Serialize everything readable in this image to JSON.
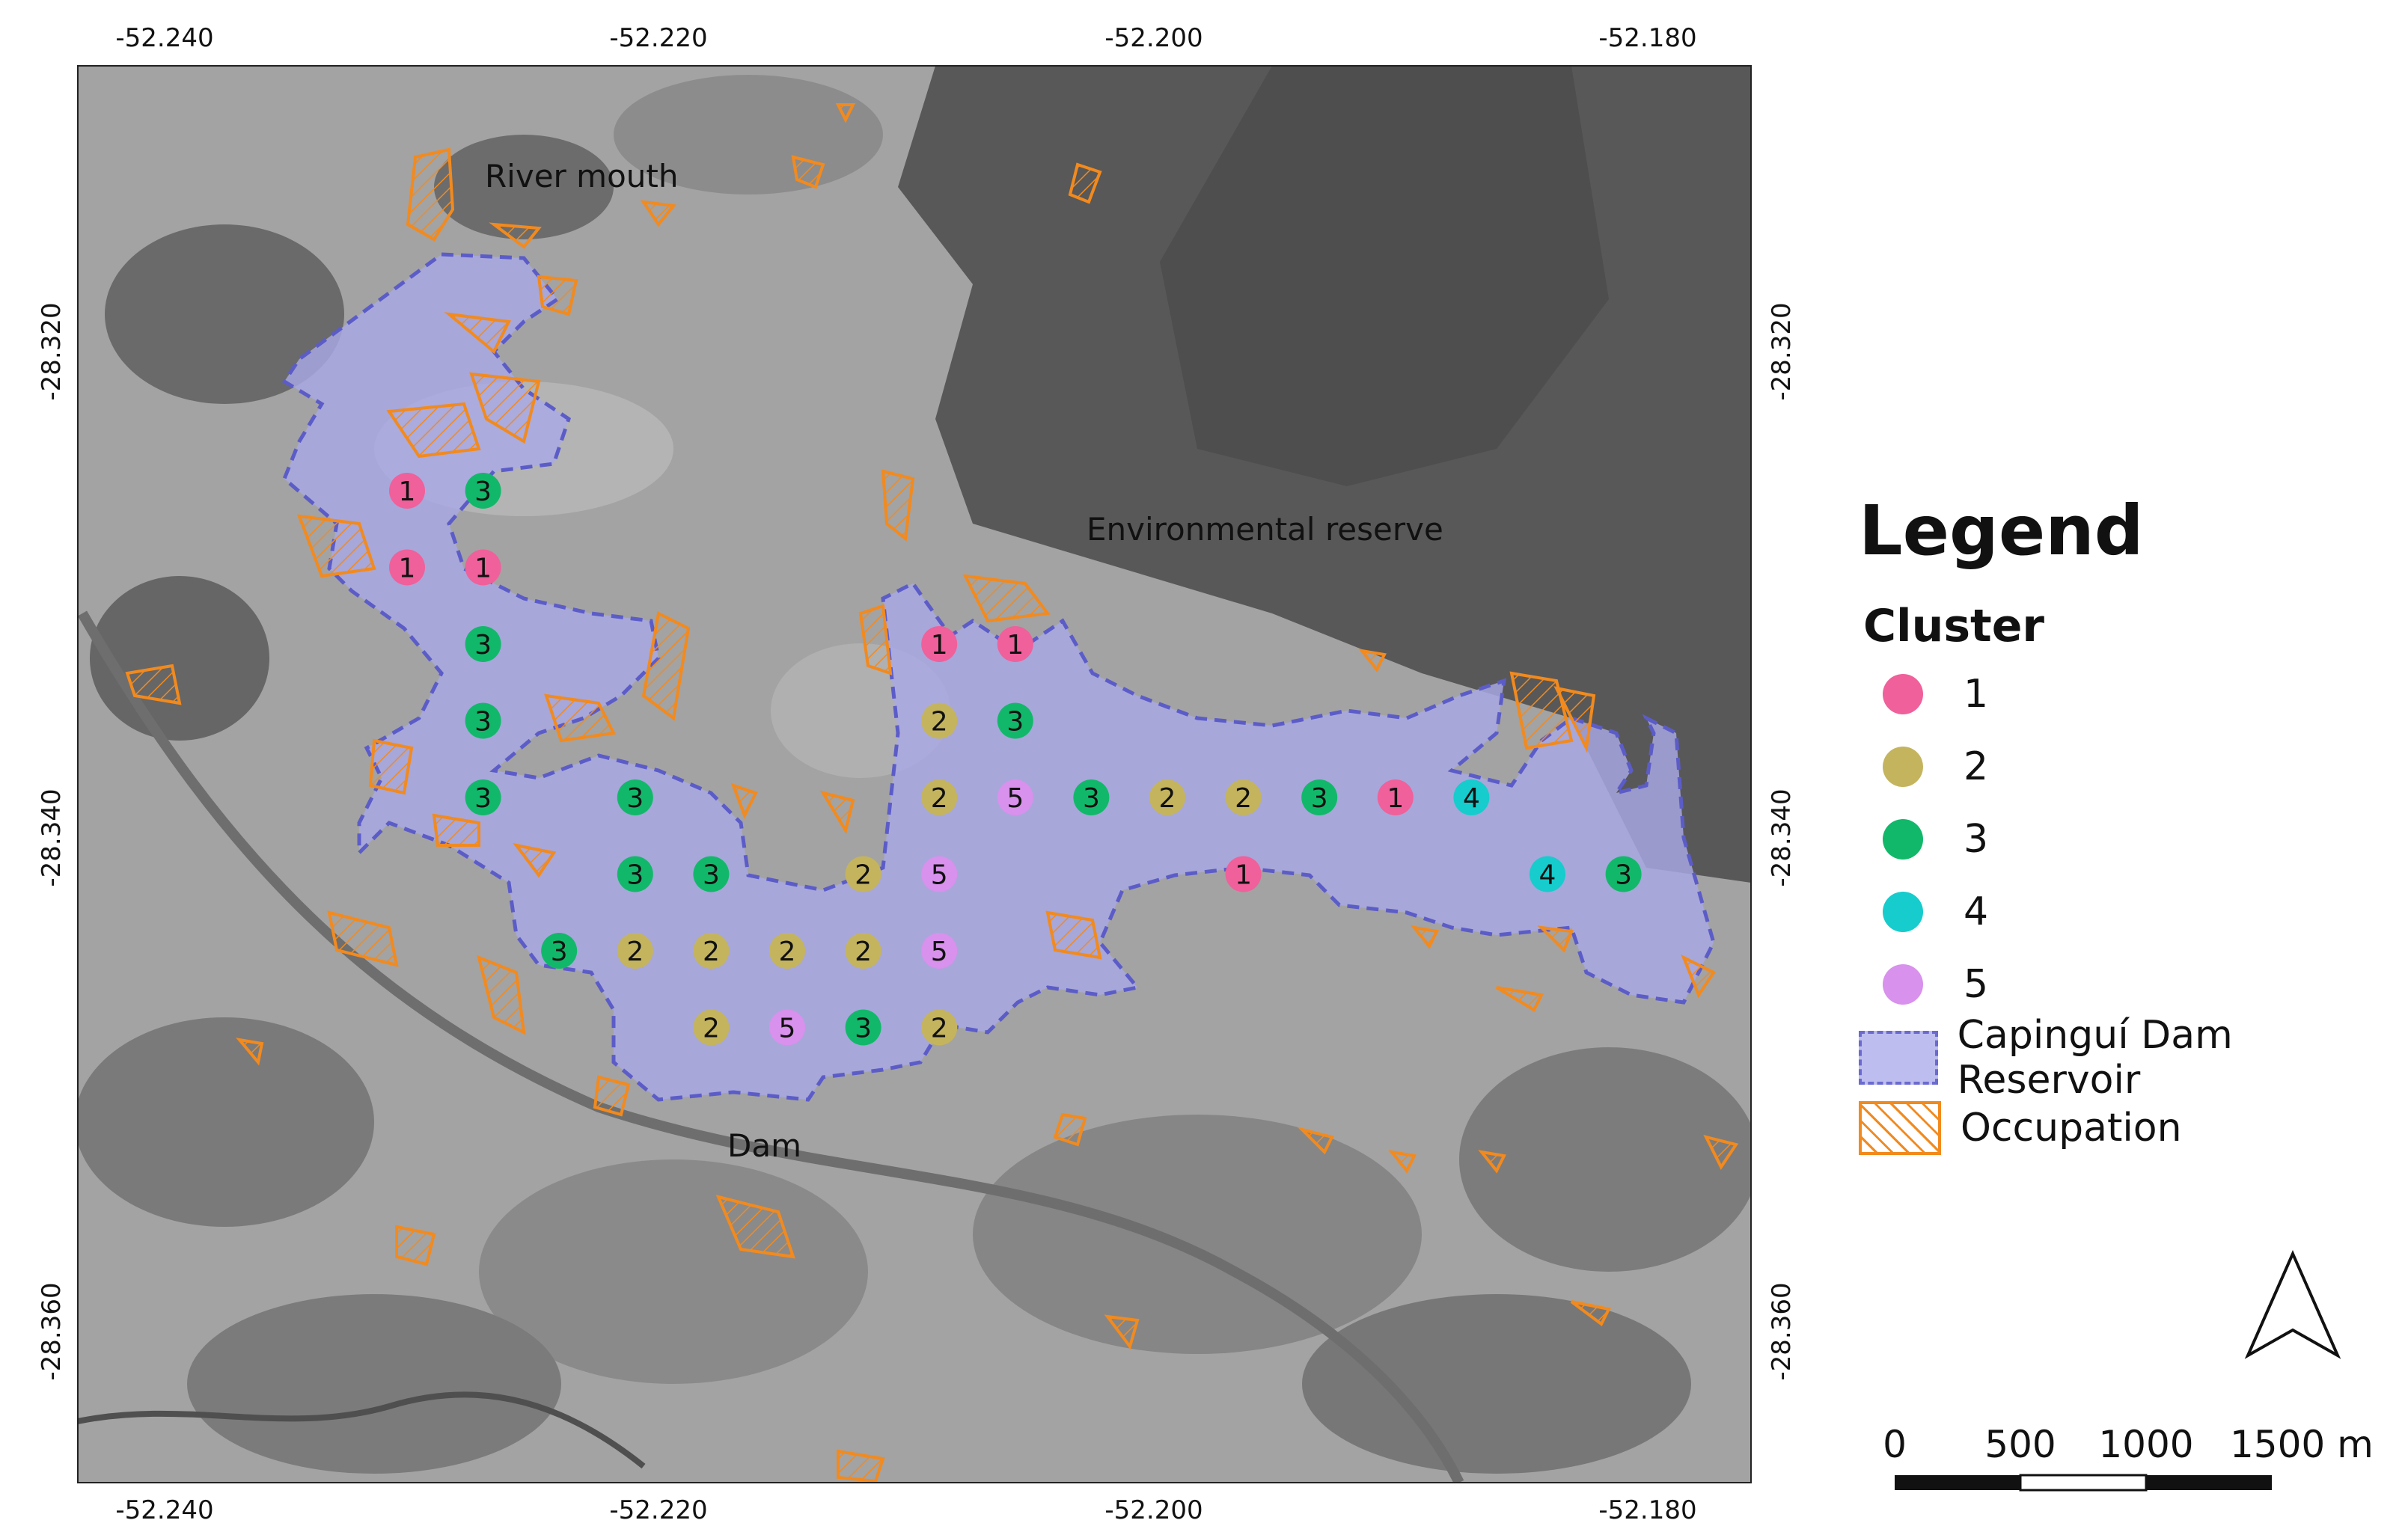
{
  "axes": {
    "top_ticks": [
      "-52.240",
      "-52.220",
      "-52.200",
      "-52.180"
    ],
    "bottom_ticks": [
      "-52.240",
      "-52.220",
      "-52.200",
      "-52.180"
    ],
    "left_ticks": [
      "-28.320",
      "-28.340",
      "-28.360"
    ],
    "right_ticks": [
      "-28.320",
      "-28.340",
      "-28.360"
    ]
  },
  "places": {
    "river_mouth": "River mouth",
    "environmental_reserve": "Environmental reserve",
    "dam": "Dam"
  },
  "legend": {
    "title": "Legend",
    "cluster_heading": "Cluster",
    "clusters": [
      {
        "label": "1",
        "color": "#f0609a"
      },
      {
        "label": "2",
        "color": "#c4b45e"
      },
      {
        "label": "3",
        "color": "#12b86a"
      },
      {
        "label": "4",
        "color": "#16cccc"
      },
      {
        "label": "5",
        "color": "#d891ec"
      }
    ],
    "reservoir_label": "Capinguí Dam Reservoir",
    "occupation_label": "Occupation"
  },
  "colors": {
    "reservoir_fill": "#a8a8e6",
    "reservoir_border": "#5c5cc8",
    "occupation": "#f28a1e",
    "background_imagery": "#9a9a9a",
    "forest": "#5a5a5a"
  },
  "scale_bar": {
    "labels": [
      "0",
      "500",
      "1000",
      "1500 m"
    ]
  },
  "north_arrow": "north-arrow-icon",
  "sample_points": [
    {
      "row": 0,
      "col": 0,
      "cluster": 1
    },
    {
      "row": 0,
      "col": 1,
      "cluster": 3
    },
    {
      "row": 1,
      "col": 0,
      "cluster": 1
    },
    {
      "row": 1,
      "col": 1,
      "cluster": 1
    },
    {
      "row": 2,
      "col": 1,
      "cluster": 3
    },
    {
      "row": 2,
      "col": 7,
      "cluster": 1
    },
    {
      "row": 2,
      "col": 8,
      "cluster": 1
    },
    {
      "row": 3,
      "col": 1,
      "cluster": 3
    },
    {
      "row": 3,
      "col": 7,
      "cluster": 2
    },
    {
      "row": 3,
      "col": 8,
      "cluster": 3
    },
    {
      "row": 4,
      "col": 1,
      "cluster": 3
    },
    {
      "row": 4,
      "col": 3,
      "cluster": 3
    },
    {
      "row": 4,
      "col": 7,
      "cluster": 2
    },
    {
      "row": 4,
      "col": 8,
      "cluster": 5
    },
    {
      "row": 4,
      "col": 9,
      "cluster": 3
    },
    {
      "row": 4,
      "col": 10,
      "cluster": 2
    },
    {
      "row": 4,
      "col": 11,
      "cluster": 2
    },
    {
      "row": 4,
      "col": 12,
      "cluster": 3
    },
    {
      "row": 4,
      "col": 13,
      "cluster": 1
    },
    {
      "row": 4,
      "col": 14,
      "cluster": 4
    },
    {
      "row": 5,
      "col": 3,
      "cluster": 3
    },
    {
      "row": 5,
      "col": 4,
      "cluster": 3
    },
    {
      "row": 5,
      "col": 6,
      "cluster": 2
    },
    {
      "row": 5,
      "col": 7,
      "cluster": 5
    },
    {
      "row": 5,
      "col": 11,
      "cluster": 1
    },
    {
      "row": 5,
      "col": 15,
      "cluster": 4
    },
    {
      "row": 5,
      "col": 16,
      "cluster": 3
    },
    {
      "row": 6,
      "col": 2,
      "cluster": 3
    },
    {
      "row": 6,
      "col": 3,
      "cluster": 2
    },
    {
      "row": 6,
      "col": 4,
      "cluster": 2
    },
    {
      "row": 6,
      "col": 5,
      "cluster": 2
    },
    {
      "row": 6,
      "col": 6,
      "cluster": 2
    },
    {
      "row": 6,
      "col": 7,
      "cluster": 5
    },
    {
      "row": 7,
      "col": 4,
      "cluster": 2
    },
    {
      "row": 7,
      "col": 5,
      "cluster": 5
    },
    {
      "row": 7,
      "col": 6,
      "cluster": 3
    },
    {
      "row": 7,
      "col": 7,
      "cluster": 2
    }
  ]
}
